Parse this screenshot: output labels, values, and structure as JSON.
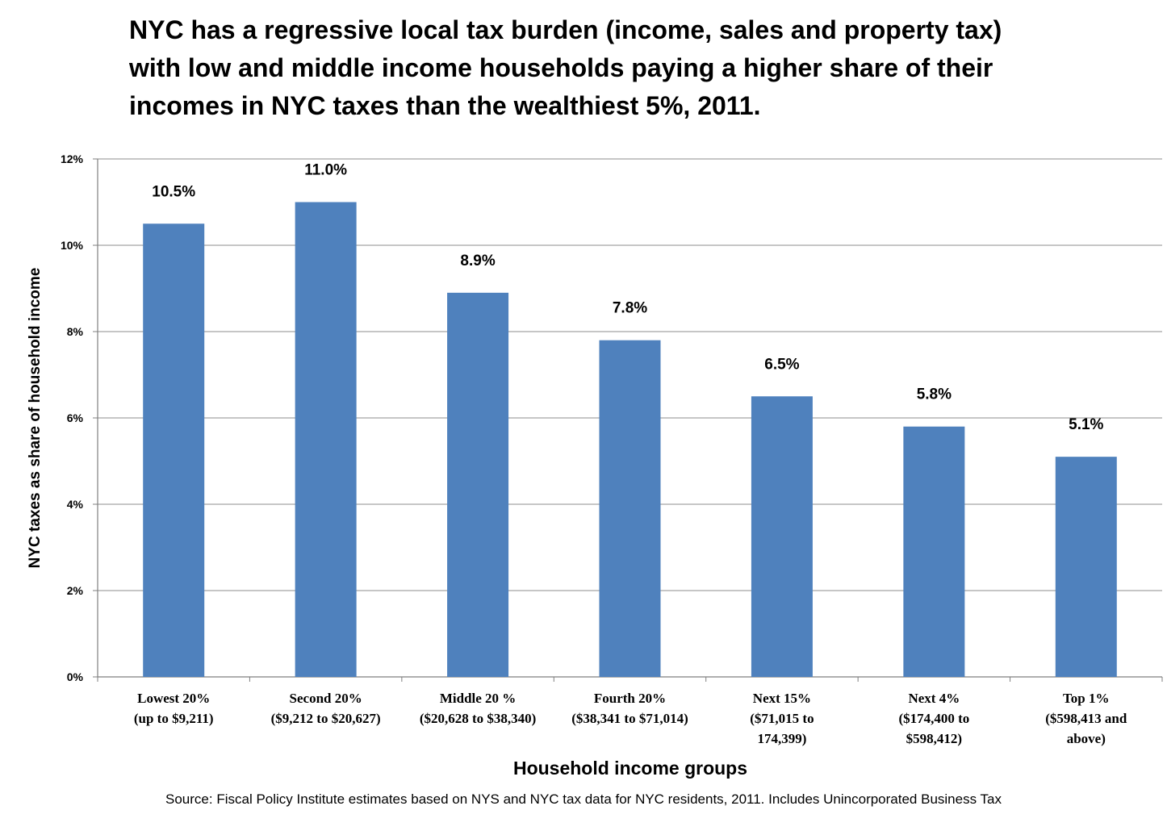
{
  "title_lines": [
    "NYC has a regressive local tax burden (income, sales and property tax)",
    "with low and middle income households paying a higher share of their",
    "incomes in NYC taxes than the wealthiest 5%, 2011."
  ],
  "source": "Source: Fiscal Policy Institute estimates based on NYS and NYC tax data for NYC residents, 2011. Includes Unincorporated Business Tax",
  "colors": {
    "bar": "#4F81BD",
    "grid": "#8c8c8c",
    "axis": "#7f7f7f"
  },
  "chart_data": {
    "type": "bar",
    "title": "NYC has a regressive local tax burden (income, sales and property tax) with low and middle income households paying a higher share of their incomes in NYC taxes than the wealthiest 5%, 2011.",
    "xlabel": "Household income groups",
    "ylabel": "NYC taxes as share of household income",
    "ylim": [
      0,
      12
    ],
    "y_ticks": [
      "0%",
      "2%",
      "4%",
      "6%",
      "8%",
      "10%",
      "12%"
    ],
    "grid": true,
    "legend": "none",
    "categories": [
      [
        "Lowest 20%",
        "(up to $9,211)"
      ],
      [
        "Second 20%",
        "($9,212 to $20,627)"
      ],
      [
        "Middle 20 %",
        "($20,628 to $38,340)"
      ],
      [
        "Fourth 20%",
        "($38,341 to $71,014)"
      ],
      [
        "Next 15%",
        "($71,015 to",
        "174,399)"
      ],
      [
        "Next 4%",
        "($174,400 to",
        "$598,412)"
      ],
      [
        "Top 1%",
        "($598,413 and",
        "above)"
      ]
    ],
    "values": [
      10.5,
      11.0,
      8.9,
      7.8,
      6.5,
      5.8,
      5.1
    ],
    "data_labels": [
      "10.5%",
      "11.0%",
      "8.9%",
      "7.8%",
      "6.5%",
      "5.8%",
      "5.1%"
    ]
  }
}
